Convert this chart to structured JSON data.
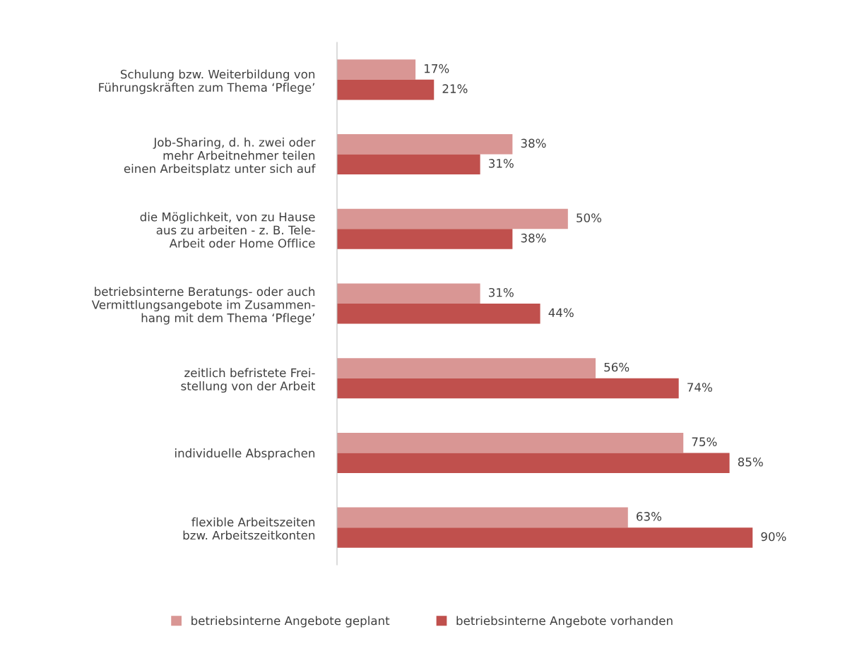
{
  "chart_data": {
    "type": "bar",
    "orientation": "horizontal",
    "categories": [
      "Schulung bzw. Weiterbildung von\nFührungskräften zum Thema ‘Pflege’",
      "Job-Sharing, d. h. zwei oder\nmehr Arbeitnehmer teilen\neinen Arbeitsplatz unter sich auf",
      "die Möglichkeit, von zu Hause\naus zu arbeiten - z. B. Tele-\nArbeit oder Home Offlice",
      "betriebsinterne Beratungs- oder auch\nVermittlungsangebote im Zusammen-\nhang mit dem Thema ‘Pflege’",
      "zeitlich befristete Frei-\nstellung von der Arbeit",
      "individuelle Absprachen",
      "flexible Arbeitszeiten\nbzw. Arbeitszeitkonten"
    ],
    "series": [
      {
        "name": "betriebsinterne Angebote geplant",
        "color": "#d99694",
        "values": [
          17,
          38,
          50,
          31,
          56,
          75,
          63
        ],
        "value_labels": [
          "17%",
          "38%",
          "50%",
          "31%",
          "56%",
          "75%",
          "63%"
        ]
      },
      {
        "name": "betriebsinterne Angebote vorhanden",
        "color": "#c0504d",
        "values": [
          21,
          31,
          38,
          44,
          74,
          85,
          90
        ],
        "value_labels": [
          "21%",
          "31%",
          "38%",
          "44%",
          "74%",
          "85%",
          "90%"
        ]
      }
    ],
    "legend": "bottom",
    "grid": false
  }
}
